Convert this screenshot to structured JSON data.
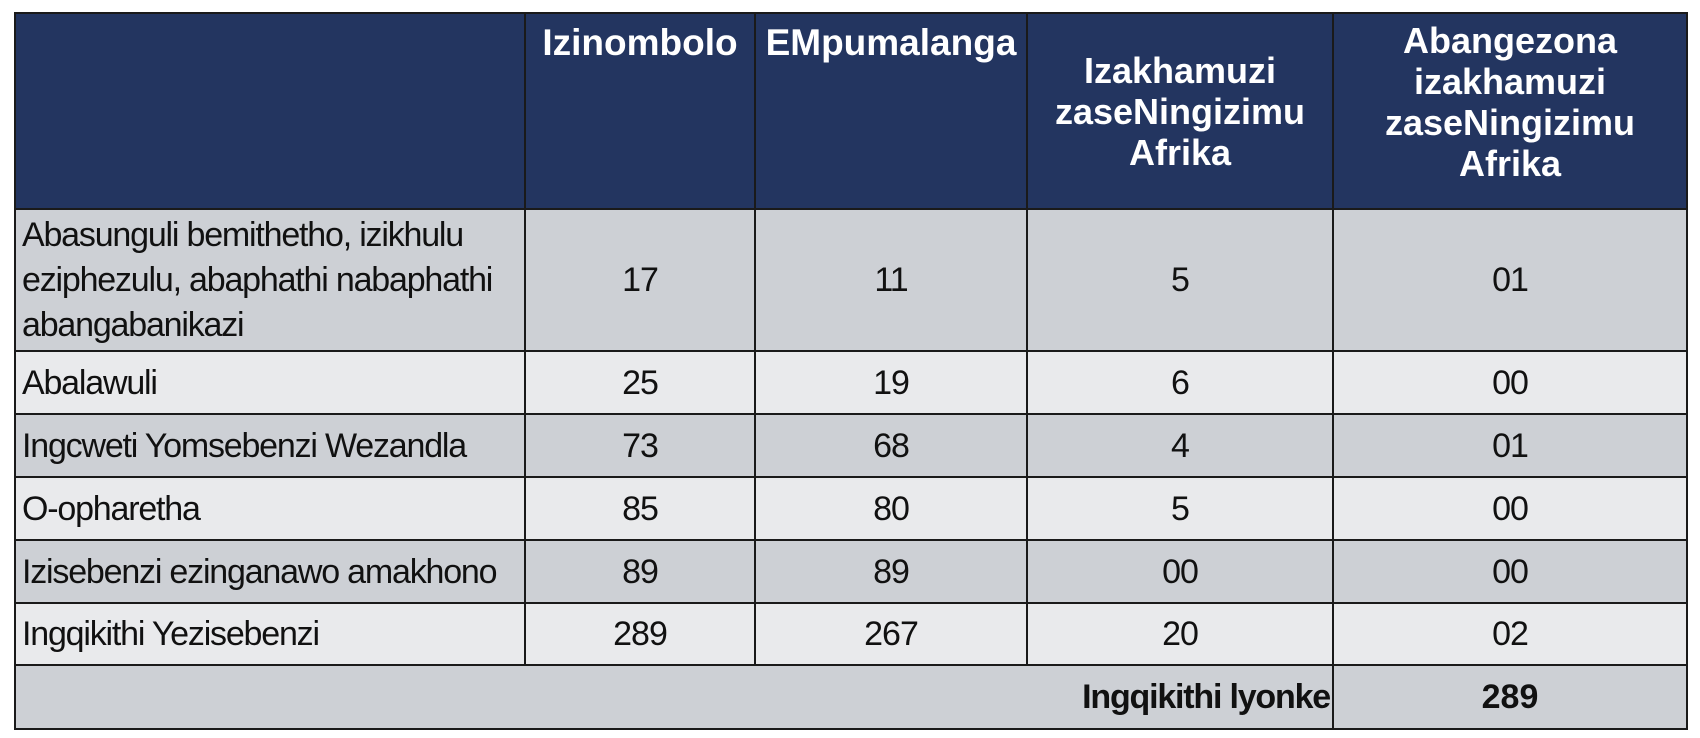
{
  "table": {
    "headers": [
      "",
      "Izinombolo",
      "EMpumalanga",
      "Izakhamuzi zaseNingizimu Afrika",
      "Abangezona izakhamuzi zaseNingizimu Afrika"
    ],
    "rows": [
      {
        "label": "Abasunguli bemithetho, izikhulu eziphezulu, abaphathi nabaphathi abangabanikazi",
        "values": [
          "17",
          "11",
          "5",
          "01"
        ]
      },
      {
        "label": "Abalawuli",
        "values": [
          "25",
          "19",
          "6",
          "00"
        ]
      },
      {
        "label": "Ingcweti Yomsebenzi Wezandla",
        "values": [
          "73",
          "68",
          "4",
          "01"
        ]
      },
      {
        "label": "O-opharetha",
        "values": [
          "85",
          "80",
          "5",
          "00"
        ]
      },
      {
        "label": "Izisebenzi ezinganawo amakhono",
        "values": [
          "89",
          "89",
          "00",
          "00"
        ]
      },
      {
        "label": "Ingqikithi Yezisebenzi",
        "values": [
          "289",
          "267",
          "20",
          "02"
        ]
      }
    ],
    "grand_total": {
      "label": "Ingqikithi lyonke",
      "value": "289"
    }
  },
  "colors": {
    "header_bg": "#233560",
    "header_text": "#ffffff",
    "row_dark": "#cdd0d5",
    "row_light": "#e9eaec",
    "border": "#1a1a1a"
  }
}
